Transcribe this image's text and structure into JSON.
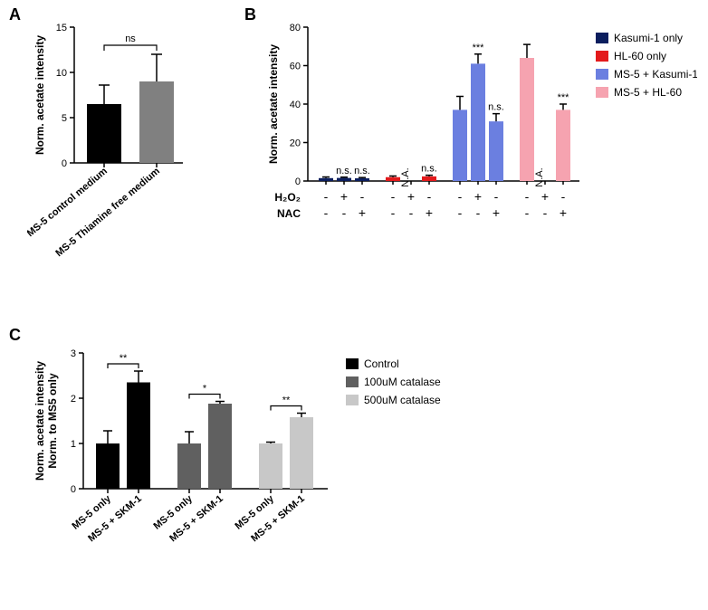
{
  "panelA": {
    "type": "bar",
    "label": "A",
    "ylabel": "Norm. acetate intensity",
    "ylim": [
      0,
      15
    ],
    "ytick_step": 5,
    "background_color": "#ffffff",
    "bars": [
      {
        "label": "MS-5 control medium",
        "value": 6.5,
        "err": 2.1,
        "color": "#000000"
      },
      {
        "label": "MS-5 Thiamine free medium",
        "value": 9.0,
        "err": 3.0,
        "color": "#808080"
      }
    ],
    "bracket": {
      "from": 0,
      "to": 1,
      "text": "ns"
    }
  },
  "panelB": {
    "type": "bar",
    "label": "B",
    "ylabel": "Norm. acetate intensity",
    "ylim": [
      0,
      80
    ],
    "ytick_step": 20,
    "background_color": "#ffffff",
    "legend": [
      {
        "label": "Kasumi-1 only",
        "color": "#0b1e5e"
      },
      {
        "label": "HL-60 only",
        "color": "#e31a1c"
      },
      {
        "label": "MS-5 + Kasumi-1",
        "color": "#6b7fe0"
      },
      {
        "label": "MS-5 + HL-60",
        "color": "#f6a3b0"
      }
    ],
    "conditions": {
      "row1_label": "H₂O₂",
      "row2_label": "NAC",
      "pattern": [
        "-",
        "+",
        "-",
        "-",
        "+",
        "-",
        "-",
        "+",
        "-",
        "-",
        "+",
        "-"
      ],
      "pattern2": [
        "-",
        "-",
        "+",
        "-",
        "-",
        "+",
        "-",
        "-",
        "+",
        "-",
        "-",
        "+"
      ]
    },
    "groups": [
      {
        "color": "#0b1e5e",
        "bars": [
          {
            "value": 1.5,
            "err": 0.6,
            "annot": ""
          },
          {
            "value": 1.6,
            "err": 0.4,
            "annot": "n.s."
          },
          {
            "value": 1.4,
            "err": 0.4,
            "annot": "n.s."
          }
        ]
      },
      {
        "color": "#e31a1c",
        "bars": [
          {
            "value": 2.0,
            "err": 0.6,
            "annot": ""
          },
          {
            "value": 0,
            "err": 0,
            "annot": "N.A."
          },
          {
            "value": 2.4,
            "err": 0.6,
            "annot": "n.s."
          }
        ]
      },
      {
        "color": "#6b7fe0",
        "bars": [
          {
            "value": 37,
            "err": 7,
            "annot": ""
          },
          {
            "value": 61,
            "err": 5,
            "annot": "***"
          },
          {
            "value": 31,
            "err": 4,
            "annot": "n.s."
          }
        ]
      },
      {
        "color": "#f6a3b0",
        "bars": [
          {
            "value": 64,
            "err": 7,
            "annot": ""
          },
          {
            "value": 0,
            "err": 0,
            "annot": "N.A."
          },
          {
            "value": 37,
            "err": 3,
            "annot": "***"
          }
        ]
      }
    ]
  },
  "panelC": {
    "type": "bar",
    "label": "C",
    "ylabel_line1": "Norm. acetate intensity",
    "ylabel_line2": "Norm. to MS5 only",
    "ylim": [
      0,
      3
    ],
    "ytick_step": 1,
    "background_color": "#ffffff",
    "legend": [
      {
        "label": "Control",
        "color": "#000000"
      },
      {
        "label": "100uM catalase",
        "color": "#606060"
      },
      {
        "label": "500uM catalase",
        "color": "#c8c8c8"
      }
    ],
    "xlabels": [
      "MS-5 only",
      "MS-5 + SKM-1",
      "MS-5 only",
      "MS-5 + SKM-1",
      "MS-5 only",
      "MS-5 + SKM-1"
    ],
    "groups": [
      {
        "color": "#000000",
        "bars": [
          {
            "value": 1.0,
            "err": 0.28
          },
          {
            "value": 2.35,
            "err": 0.25
          }
        ],
        "sig": "**"
      },
      {
        "color": "#606060",
        "bars": [
          {
            "value": 1.0,
            "err": 0.26
          },
          {
            "value": 1.88,
            "err": 0.05
          }
        ],
        "sig": "*"
      },
      {
        "color": "#c8c8c8",
        "bars": [
          {
            "value": 1.0,
            "err": 0.03
          },
          {
            "value": 1.58,
            "err": 0.09
          }
        ],
        "sig": "**"
      }
    ]
  }
}
